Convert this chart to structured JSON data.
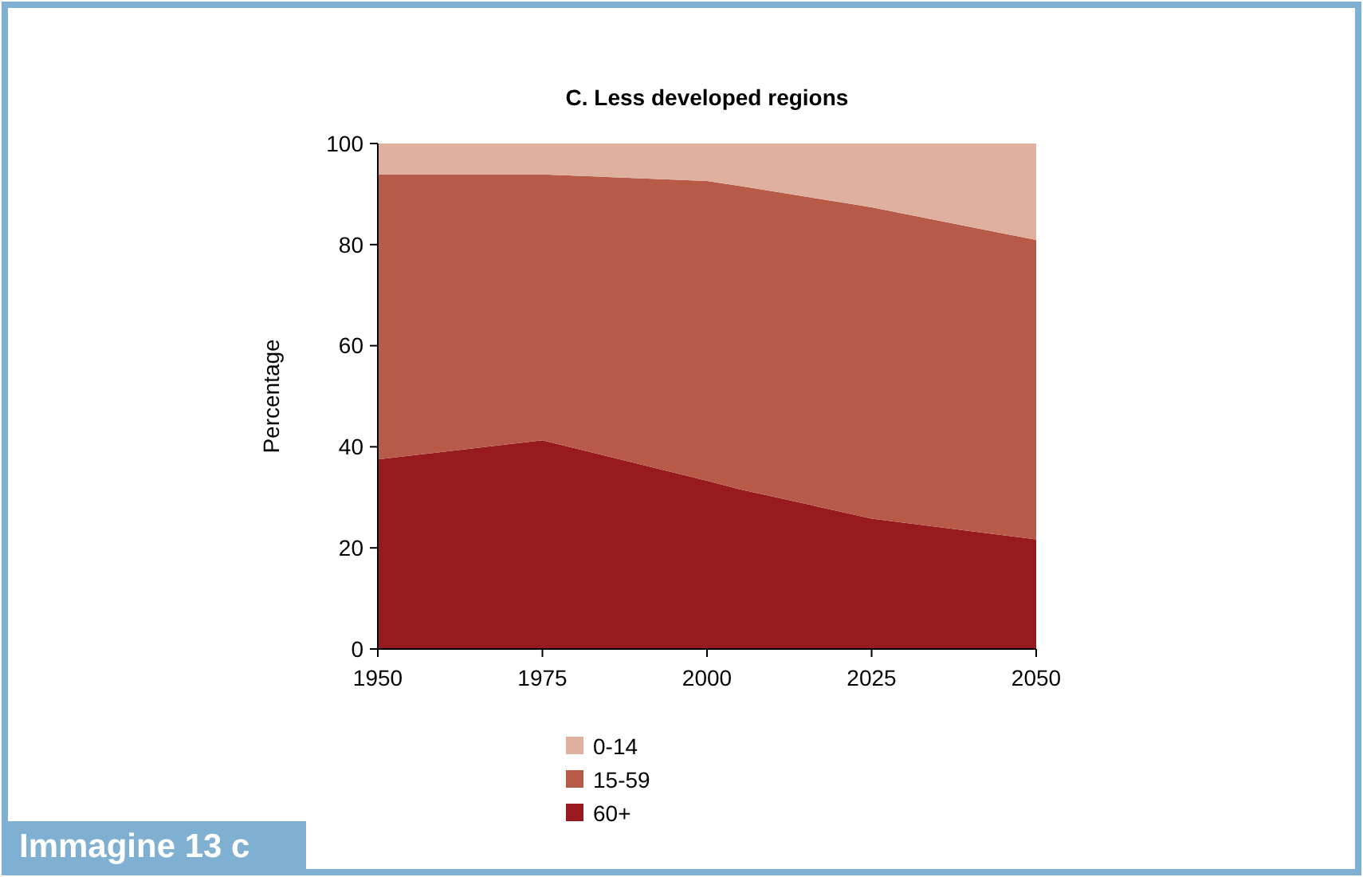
{
  "chart_data": {
    "type": "area",
    "title": "C. Less developed regions",
    "ylabel": "Percentage",
    "x": [
      1950,
      1975,
      2000,
      2005,
      2025,
      2050
    ],
    "xlim": [
      1950,
      2050
    ],
    "xticks": [
      1950,
      1975,
      2000,
      2025,
      2050
    ],
    "ylim": [
      0,
      100
    ],
    "yticks": [
      0,
      20,
      40,
      60,
      80,
      100
    ],
    "stacked": true,
    "legend": "bottom",
    "grid": false,
    "series": [
      {
        "name": "60+",
        "color": "#961a1e",
        "values": [
          37.5,
          41.3,
          33.3,
          31.6,
          25.8,
          21.7
        ]
      },
      {
        "name": "15-59",
        "color": "#b85a48",
        "values": [
          56.4,
          52.6,
          59.3,
          60,
          61.6,
          59.2
        ]
      },
      {
        "name": "0-14",
        "color": "#e0b09e",
        "values": [
          6.1,
          6.1,
          7.4,
          8.4,
          12.6,
          19.1
        ]
      }
    ],
    "annotations": [
      "Immagine 13 c"
    ]
  }
}
